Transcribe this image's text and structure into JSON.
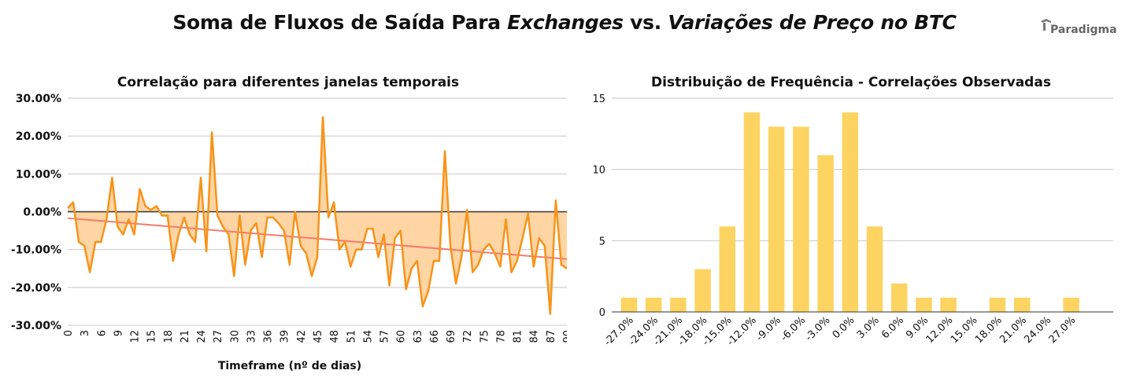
{
  "title": {
    "part1": "Soma de Fluxos de Saída Para ",
    "part2": "Exchanges",
    "part3": " vs. ",
    "part4": "Variações de Preço no BTC"
  },
  "logo": {
    "text": "Paradigma"
  },
  "chart_data": [
    {
      "type": "line",
      "title": "Correlação para diferentes janelas temporais",
      "xlabel": "Timeframe (nº de dias)",
      "ylabel": "",
      "xlim": [
        0,
        90
      ],
      "ylim": [
        -30,
        30
      ],
      "yticks": [
        30,
        20,
        10,
        0,
        -10,
        -20,
        -30
      ],
      "ytick_labels": [
        "30.00%",
        "20.00%",
        "10.00%",
        "0.00%",
        "-10.00%",
        "-20.00%",
        "-30.00%"
      ],
      "xticks": [
        0,
        3,
        6,
        9,
        12,
        15,
        18,
        21,
        24,
        27,
        30,
        33,
        36,
        39,
        42,
        45,
        48,
        51,
        54,
        57,
        60,
        63,
        66,
        69,
        72,
        75,
        78,
        81,
        84,
        87,
        90
      ],
      "x": [
        0,
        1,
        2,
        3,
        4,
        5,
        6,
        7,
        8,
        9,
        10,
        11,
        12,
        13,
        14,
        15,
        16,
        17,
        18,
        19,
        20,
        21,
        22,
        23,
        24,
        25,
        26,
        27,
        28,
        29,
        30,
        31,
        32,
        33,
        34,
        35,
        36,
        37,
        38,
        39,
        40,
        41,
        42,
        43,
        44,
        45,
        46,
        47,
        48,
        49,
        50,
        51,
        52,
        53,
        54,
        55,
        56,
        57,
        58,
        59,
        60,
        61,
        62,
        63,
        64,
        65,
        66,
        67,
        68,
        69,
        70,
        71,
        72,
        73,
        74,
        75,
        76,
        77,
        78,
        79,
        80,
        81,
        82,
        83,
        84,
        85,
        86,
        87,
        88,
        89,
        90
      ],
      "series": [
        {
          "values": [
            1,
            2.5,
            -8,
            -9,
            -16,
            -8,
            -8,
            -2,
            9,
            -4,
            -6,
            -2,
            -6,
            6,
            1.5,
            0.5,
            1.5,
            -1,
            -1,
            -13,
            -6,
            -1.5,
            -6,
            -8,
            9,
            -10.5,
            21,
            -1,
            -4,
            -6,
            -17,
            -1,
            -14,
            -5,
            -3,
            -12,
            -1.5,
            -1.5,
            -3,
            -5,
            -14,
            0,
            -9,
            -11,
            -17,
            -12,
            25,
            -1.5,
            2.5,
            -10,
            -8,
            -14.5,
            -10,
            -10,
            -4.5,
            -4.5,
            -12,
            -6,
            -19.5,
            -7,
            -5,
            -20.5,
            -15,
            -13,
            -25,
            -21,
            -13,
            -13,
            16,
            -9,
            -19,
            -12,
            0.5,
            -16,
            -14,
            -10,
            -8.5,
            -11,
            -14.5,
            -2,
            -16,
            -13,
            -7,
            -0.5,
            -14.5,
            -7,
            -9,
            -27,
            3,
            -14,
            -15
          ]
        }
      ],
      "trendline": {
        "start": -1.7,
        "end": -12.5
      },
      "colors": {
        "line": "#f7931a",
        "fill": "#ffd5a3",
        "trend": "#f47a6e",
        "grid": "#c8c8c8",
        "zero": "#333333"
      }
    },
    {
      "type": "bar",
      "title": "Distribuição de Frequência - Correlações Observadas",
      "xlabel": "",
      "ylabel": "",
      "ylim": [
        0,
        15
      ],
      "yticks": [
        0,
        5,
        10,
        15
      ],
      "categories": [
        "-27.0%",
        "-24.0%",
        "-21.0%",
        "-18.0%",
        "-15.0%",
        "-12.0%",
        "-9.0%",
        "-6.0%",
        "-3.0%",
        "0.0%",
        "3.0%",
        "6.0%",
        "9.0%",
        "12.0%",
        "15.0%",
        "18.0%",
        "21.0%",
        "24.0%",
        "27.0%"
      ],
      "values": [
        1,
        1,
        1,
        3,
        6,
        14,
        13,
        13,
        11,
        14,
        6,
        2,
        1,
        1,
        0,
        1,
        1,
        0,
        1
      ],
      "colors": {
        "bar": "#fdd461",
        "grid": "#c8c8c8",
        "axis": "#333333"
      }
    }
  ]
}
